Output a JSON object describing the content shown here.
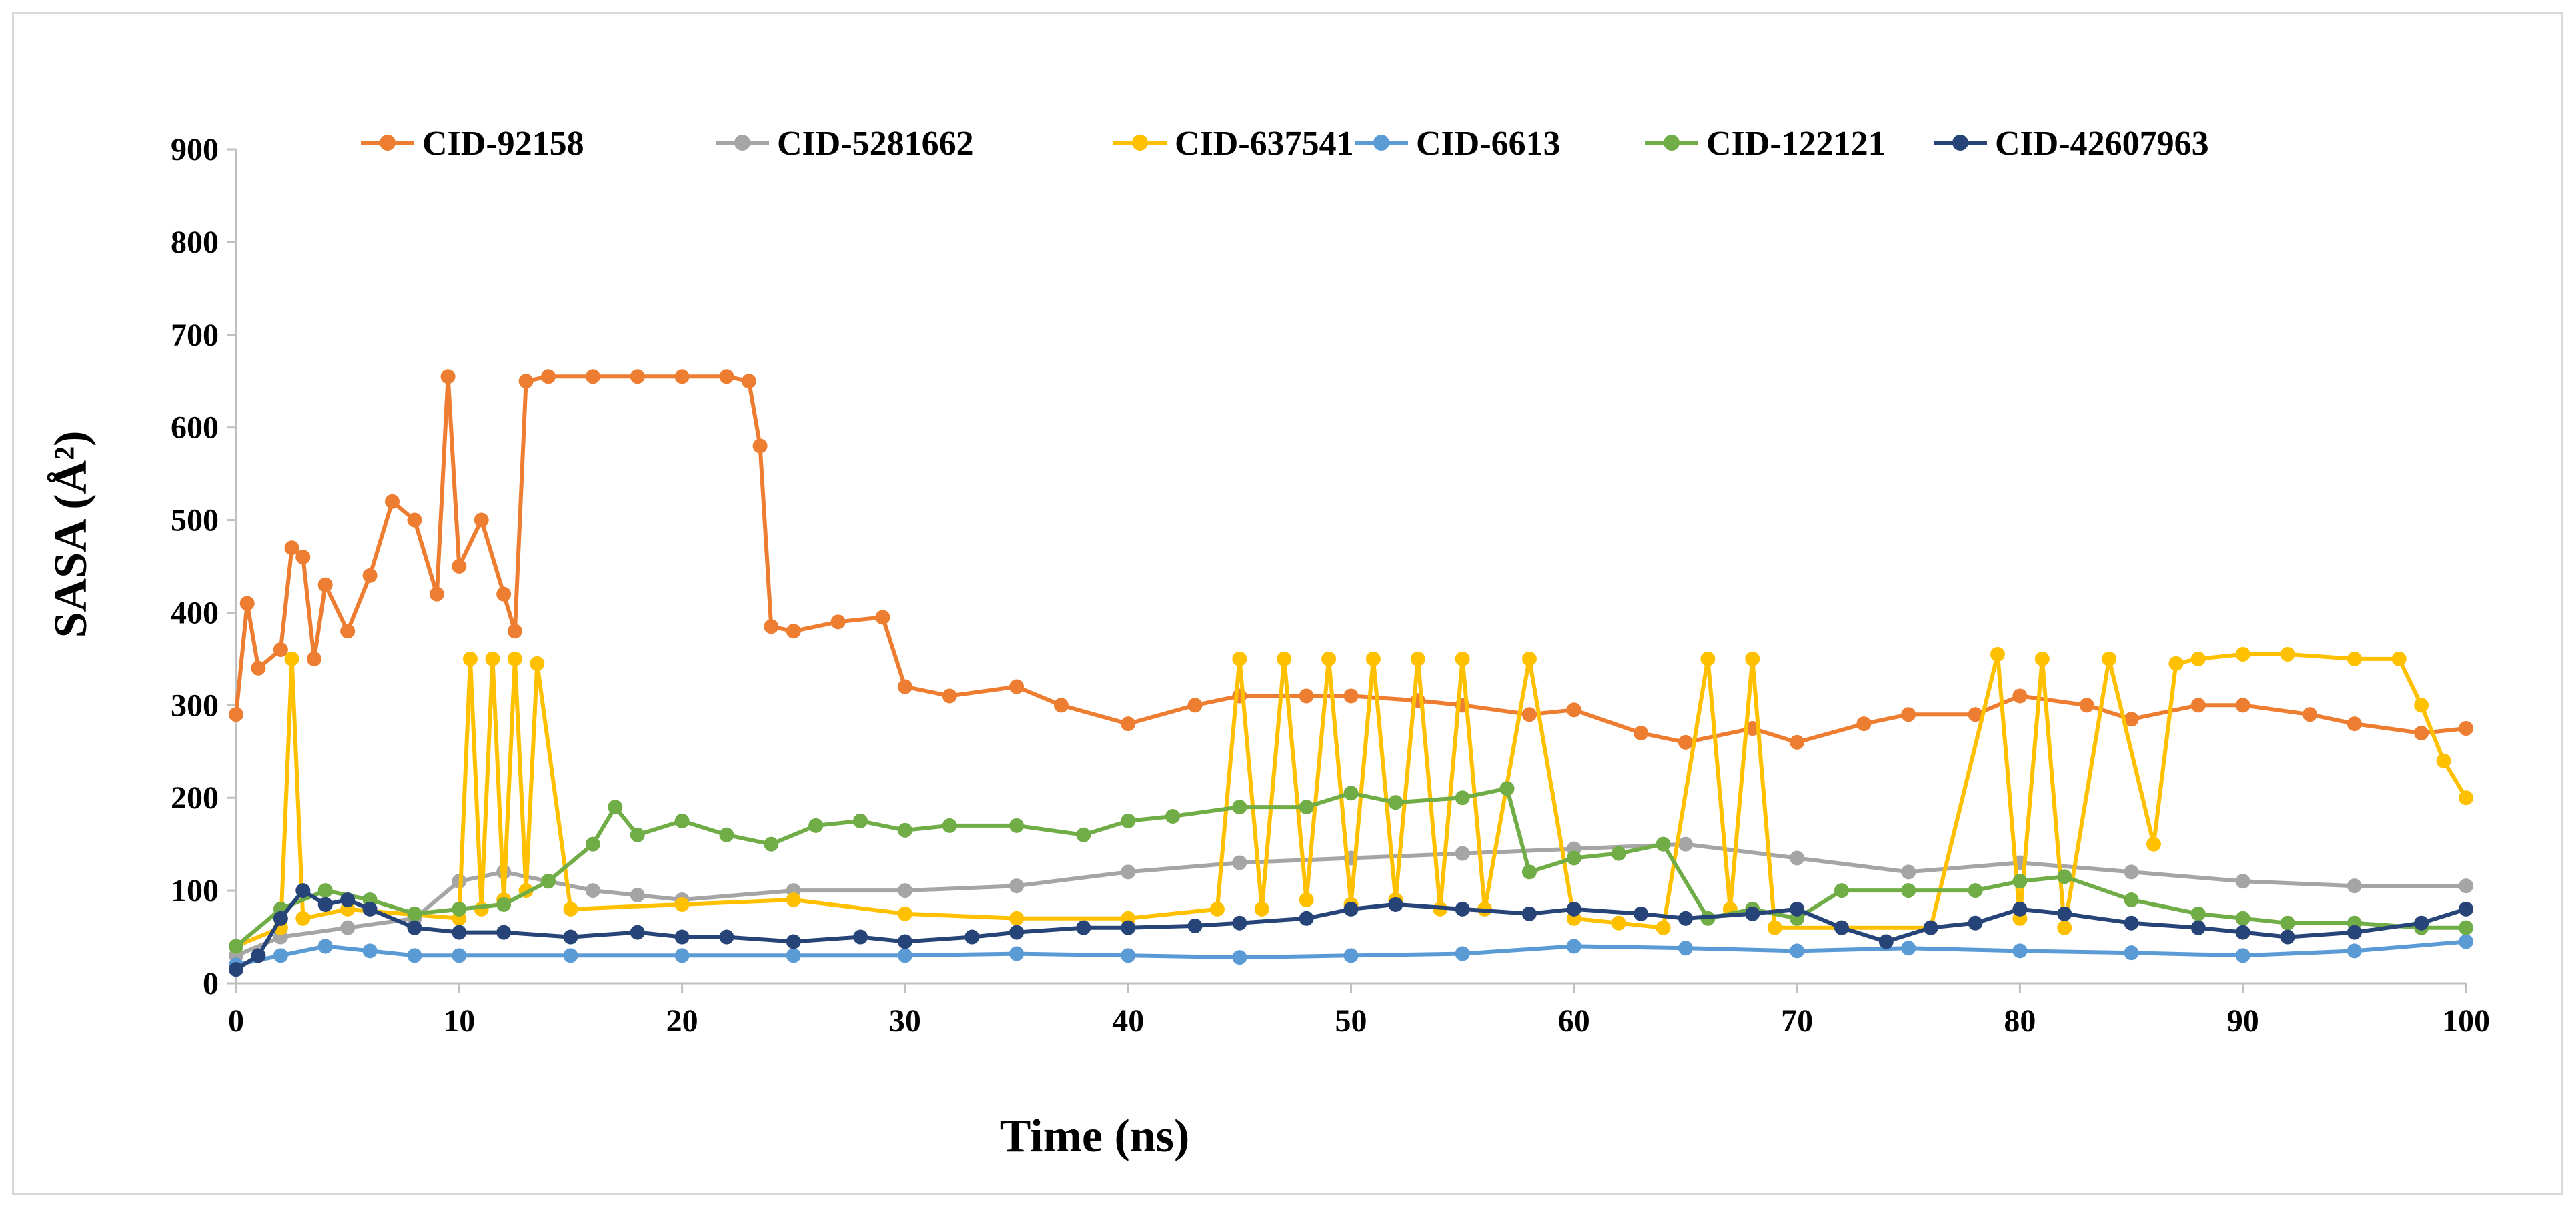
{
  "chart_data": {
    "type": "line",
    "title": "",
    "xlabel": "Time (ns)",
    "ylabel": "SASA (Å²)",
    "xlim": [
      0,
      100
    ],
    "ylim": [
      0,
      900
    ],
    "xticks": [
      "0",
      "10",
      "20",
      "30",
      "40",
      "50",
      "60",
      "70",
      "80",
      "90",
      "100"
    ],
    "yticks": [
      "0",
      "100",
      "200",
      "300",
      "400",
      "500",
      "600",
      "700",
      "800",
      "900"
    ],
    "grid": false,
    "legend_position": "top",
    "series": [
      {
        "name": "CID-92158",
        "color": "#ED7D31",
        "x": [
          0,
          0.5,
          1,
          2,
          2.5,
          3,
          3.5,
          4,
          5,
          6,
          7,
          8,
          9,
          9.5,
          10,
          11,
          12,
          12.5,
          13,
          14,
          16,
          18,
          20,
          22,
          23,
          23.5,
          24,
          25,
          27,
          29,
          30,
          32,
          35,
          37,
          40,
          43,
          45,
          48,
          50,
          53,
          55,
          58,
          60,
          63,
          65,
          68,
          70,
          73,
          75,
          78,
          80,
          83,
          85,
          88,
          90,
          93,
          95,
          98,
          100
        ],
        "values": [
          290,
          410,
          340,
          360,
          470,
          460,
          350,
          430,
          380,
          440,
          520,
          500,
          420,
          655,
          450,
          500,
          420,
          380,
          650,
          655,
          655,
          655,
          655,
          655,
          650,
          580,
          385,
          380,
          390,
          395,
          320,
          310,
          320,
          300,
          280,
          300,
          310,
          310,
          310,
          305,
          300,
          290,
          295,
          270,
          260,
          275,
          260,
          280,
          290,
          290,
          310,
          300,
          285,
          300,
          300,
          290,
          280,
          270,
          275
        ]
      },
      {
        "name": "CID-5281662",
        "color": "#A5A5A5",
        "x": [
          0,
          2,
          5,
          8,
          10,
          12,
          14,
          16,
          18,
          20,
          25,
          30,
          35,
          40,
          45,
          50,
          55,
          60,
          65,
          70,
          75,
          80,
          85,
          90,
          95,
          100
        ],
        "values": [
          30,
          50,
          60,
          70,
          110,
          120,
          110,
          100,
          95,
          90,
          100,
          100,
          105,
          120,
          130,
          135,
          140,
          145,
          150,
          135,
          120,
          130,
          120,
          110,
          105,
          105
        ]
      },
      {
        "name": "CID-637541",
        "color": "#FFC000",
        "x": [
          0,
          2,
          2.5,
          3,
          5,
          10,
          10.5,
          11,
          11.5,
          12,
          12.5,
          13,
          13.5,
          15,
          20,
          25,
          30,
          35,
          40,
          44,
          45,
          46,
          47,
          48,
          49,
          50,
          51,
          52,
          53,
          54,
          55,
          56,
          58,
          60,
          62,
          64,
          66,
          67,
          68,
          69,
          72,
          76,
          79,
          80,
          81,
          82,
          84,
          86,
          87,
          88,
          90,
          92,
          95,
          97,
          98,
          99,
          100
        ],
        "values": [
          40,
          60,
          350,
          70,
          80,
          70,
          350,
          80,
          350,
          90,
          350,
          100,
          345,
          80,
          85,
          90,
          75,
          70,
          70,
          80,
          350,
          80,
          350,
          90,
          350,
          85,
          350,
          90,
          350,
          80,
          350,
          80,
          350,
          70,
          65,
          60,
          350,
          80,
          350,
          60,
          60,
          60,
          355,
          70,
          350,
          60,
          350,
          150,
          345,
          350,
          355,
          355,
          350,
          350,
          300,
          240,
          200
        ]
      },
      {
        "name": "CID-6613",
        "color": "#5B9BD5",
        "x": [
          0,
          2,
          4,
          6,
          8,
          10,
          15,
          20,
          25,
          30,
          35,
          40,
          45,
          50,
          55,
          60,
          65,
          70,
          75,
          80,
          85,
          90,
          95,
          100
        ],
        "values": [
          20,
          30,
          40,
          35,
          30,
          30,
          30,
          30,
          30,
          30,
          32,
          30,
          28,
          30,
          32,
          40,
          38,
          35,
          38,
          35,
          33,
          30,
          35,
          45
        ]
      },
      {
        "name": "CID-122121",
        "color": "#70AD47",
        "x": [
          0,
          2,
          4,
          6,
          8,
          10,
          12,
          14,
          16,
          17,
          18,
          20,
          22,
          24,
          26,
          28,
          30,
          32,
          35,
          38,
          40,
          42,
          45,
          48,
          50,
          52,
          55,
          57,
          58,
          60,
          62,
          64,
          66,
          68,
          70,
          72,
          75,
          78,
          80,
          82,
          85,
          88,
          90,
          92,
          95,
          98,
          100
        ],
        "values": [
          40,
          80,
          100,
          90,
          75,
          80,
          85,
          110,
          150,
          190,
          160,
          175,
          160,
          150,
          170,
          175,
          165,
          170,
          170,
          160,
          175,
          180,
          190,
          190,
          205,
          195,
          200,
          210,
          120,
          135,
          140,
          150,
          70,
          80,
          70,
          100,
          100,
          100,
          110,
          115,
          90,
          75,
          70,
          65,
          65,
          60,
          60
        ]
      },
      {
        "name": "CID-42607963",
        "color": "#264478",
        "x": [
          0,
          1,
          2,
          3,
          4,
          5,
          6,
          8,
          10,
          12,
          15,
          18,
          20,
          22,
          25,
          28,
          30,
          33,
          35,
          38,
          40,
          43,
          45,
          48,
          50,
          52,
          55,
          58,
          60,
          63,
          65,
          68,
          70,
          72,
          74,
          76,
          78,
          80,
          82,
          85,
          88,
          90,
          92,
          95,
          98,
          100
        ],
        "values": [
          15,
          30,
          70,
          100,
          85,
          90,
          80,
          60,
          55,
          55,
          50,
          55,
          50,
          50,
          45,
          50,
          45,
          50,
          55,
          60,
          60,
          62,
          65,
          70,
          80,
          85,
          80,
          75,
          80,
          75,
          70,
          75,
          80,
          60,
          45,
          60,
          65,
          80,
          75,
          65,
          60,
          55,
          50,
          55,
          65,
          80
        ]
      }
    ]
  }
}
